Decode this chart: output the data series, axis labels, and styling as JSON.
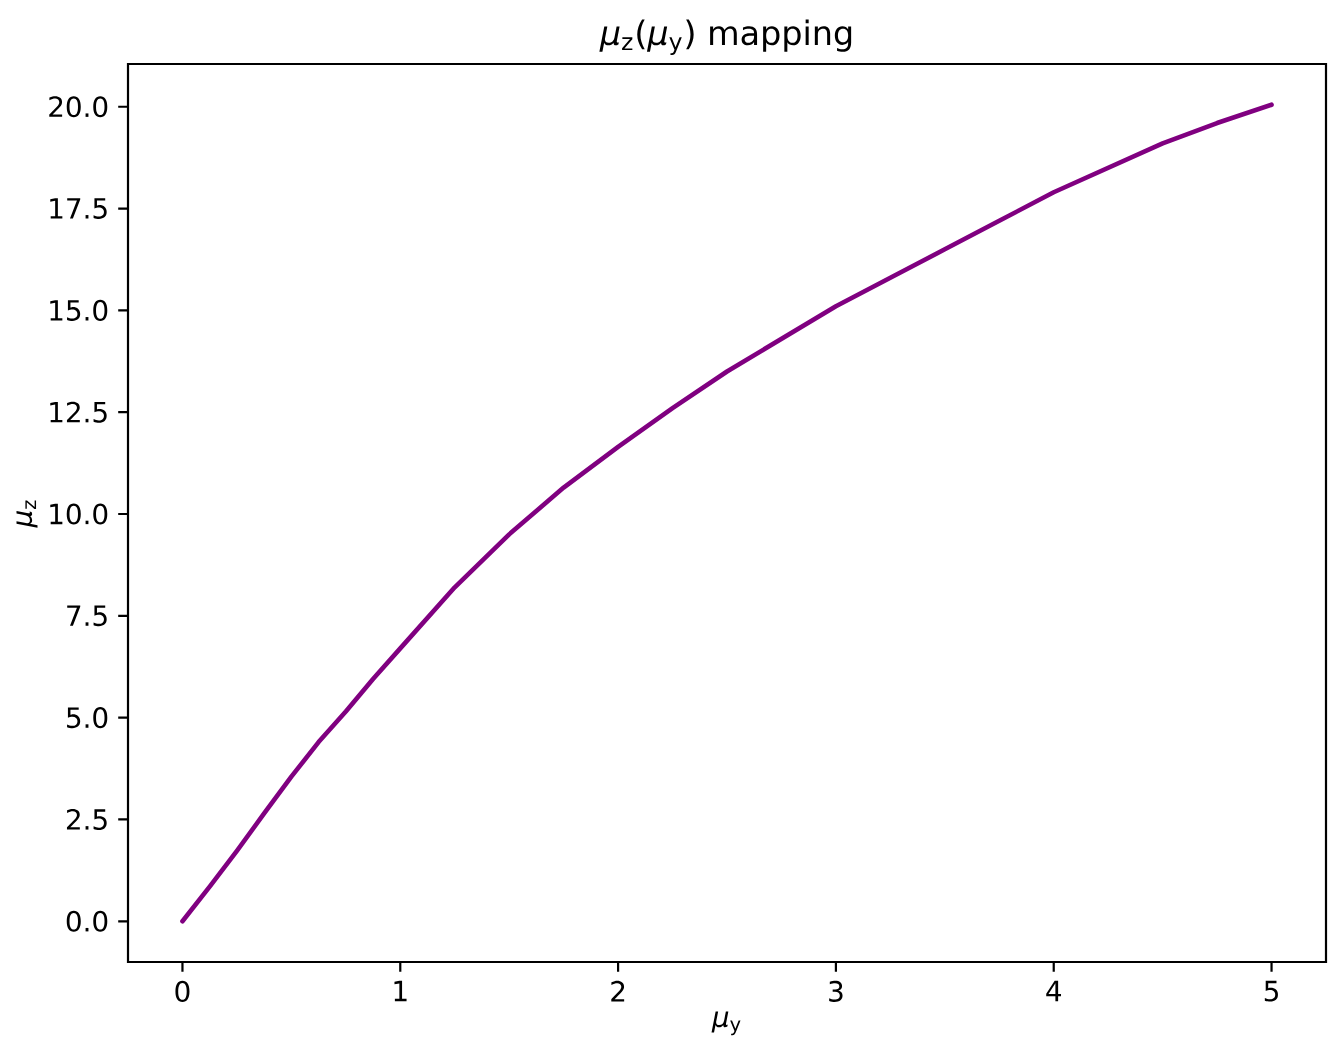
{
  "chart_data": {
    "type": "line",
    "title": "*μ*$_{z}$(*μ*$_{y}$) mapping",
    "xlabel": "*μ*$_{y}$",
    "ylabel": "*μ*$_{z}$",
    "x": [
      0,
      0.125,
      0.25,
      0.375,
      0.5,
      0.625,
      0.75,
      0.875,
      1.0,
      1.25,
      1.5,
      1.75,
      2.0,
      2.25,
      2.5,
      2.75,
      3.0,
      3.25,
      3.5,
      3.75,
      4.0,
      4.25,
      4.5,
      4.75,
      5.0
    ],
    "values": [
      0,
      0.85,
      1.73,
      2.65,
      3.55,
      4.4,
      5.15,
      5.95,
      6.7,
      8.2,
      9.5,
      10.65,
      11.65,
      12.6,
      13.5,
      14.3,
      15.1,
      15.8,
      16.5,
      17.2,
      17.9,
      18.5,
      19.1,
      19.6,
      20.05
    ],
    "color": "#800080",
    "line_style": "solid",
    "xlim": [
      -0.25,
      5.25
    ],
    "ylim": [
      -1.0,
      21.05
    ],
    "xticks": [
      0,
      1,
      2,
      3,
      4,
      5
    ],
    "yticks": [
      {
        "value": 0,
        "label": "0.0"
      },
      {
        "value": 2.5,
        "label": "2.5"
      },
      {
        "value": 5,
        "label": "5.0"
      },
      {
        "value": 7.5,
        "label": "7.5"
      },
      {
        "value": 10,
        "label": "10.0"
      },
      {
        "value": 12.5,
        "label": "12.5"
      },
      {
        "value": 15,
        "label": "15.0"
      },
      {
        "value": 17.5,
        "label": "17.5"
      },
      {
        "value": 20,
        "label": "20.0"
      }
    ],
    "grid": false
  }
}
